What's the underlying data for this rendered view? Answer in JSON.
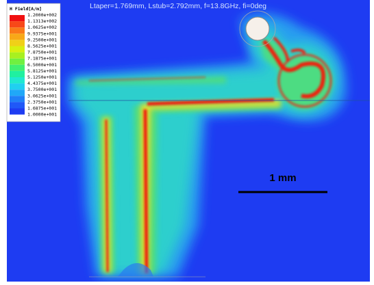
{
  "header": {
    "title": "Ltaper=1.769mm, Lstub=2.792mm, f=13.8GHz, fi=0deg"
  },
  "legend": {
    "title": "H Field[A/m]",
    "labels": [
      "1.2000e+002",
      "1.1313e+002",
      "1.0625e+002",
      "9.9375e+001",
      "9.2500e+001",
      "8.5625e+001",
      "7.8750e+001",
      "7.1875e+001",
      "6.5000e+001",
      "5.8125e+001",
      "5.1250e+001",
      "4.4375e+001",
      "3.7500e+001",
      "3.0625e+001",
      "2.3750e+001",
      "1.6875e+001",
      "1.0000e+001"
    ]
  },
  "scale_bar": {
    "label": "1 mm"
  }
}
